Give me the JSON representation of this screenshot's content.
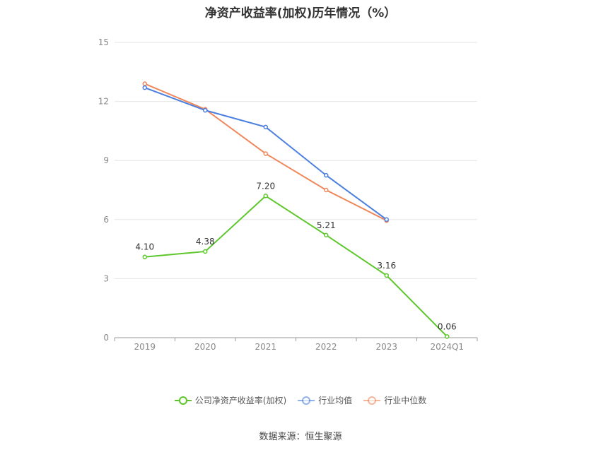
{
  "chart_data": {
    "type": "line",
    "title": "净资产收益率(加权)历年情况（%）",
    "categories": [
      "2019",
      "2020",
      "2021",
      "2022",
      "2023",
      "2024Q1"
    ],
    "ylim": [
      0,
      15
    ],
    "yticks": [
      0,
      3,
      6,
      9,
      12,
      15
    ],
    "grid": true,
    "legend_position": "bottom",
    "series": [
      {
        "name": "公司净资产收益率(加权)",
        "values": [
          4.1,
          4.38,
          7.2,
          5.21,
          3.16,
          0.06
        ],
        "labels": [
          "4.10",
          "4.38",
          "7.20",
          "5.21",
          "3.16",
          "0.06"
        ],
        "color": "#5cc72b"
      },
      {
        "name": "行业均值",
        "values": [
          12.7,
          11.55,
          10.7,
          8.25,
          6.0,
          null
        ],
        "color": "#4a7fe0"
      },
      {
        "name": "行业中位数",
        "values": [
          12.9,
          11.6,
          9.35,
          7.5,
          5.95,
          null
        ],
        "color": "#f0875a"
      }
    ]
  },
  "source": "数据来源：恒生聚源"
}
